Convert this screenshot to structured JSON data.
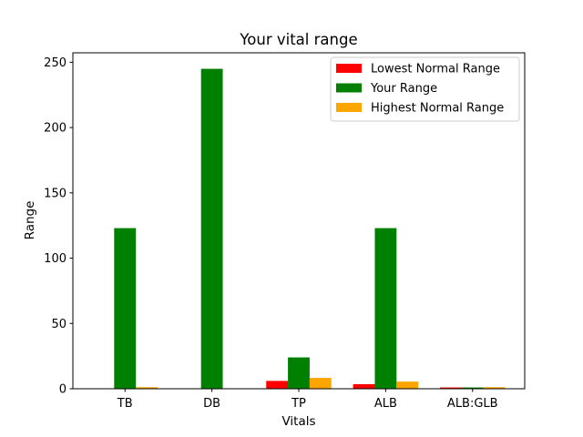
{
  "chart_data": {
    "type": "bar",
    "title": "Your vital range",
    "xlabel": "Vitals",
    "ylabel": "Range",
    "categories": [
      "TB",
      "DB",
      "TP",
      "ALB",
      "ALB:GLB"
    ],
    "series": [
      {
        "name": "Lowest Normal Range",
        "color": "#ff0000",
        "values": [
          0.3,
          0,
          6,
          3.5,
          1
        ]
      },
      {
        "name": "Your Range",
        "color": "#008000",
        "values": [
          123,
          245,
          24,
          123,
          1
        ]
      },
      {
        "name": "Highest Normal Range",
        "color": "#ffa500",
        "values": [
          1.2,
          0.3,
          8.3,
          5.5,
          1.2
        ]
      }
    ],
    "ylim": [
      0,
      257.25
    ],
    "yticks": [
      0,
      50,
      100,
      150,
      200,
      250
    ],
    "grid": false,
    "legend_position": "top-right"
  }
}
